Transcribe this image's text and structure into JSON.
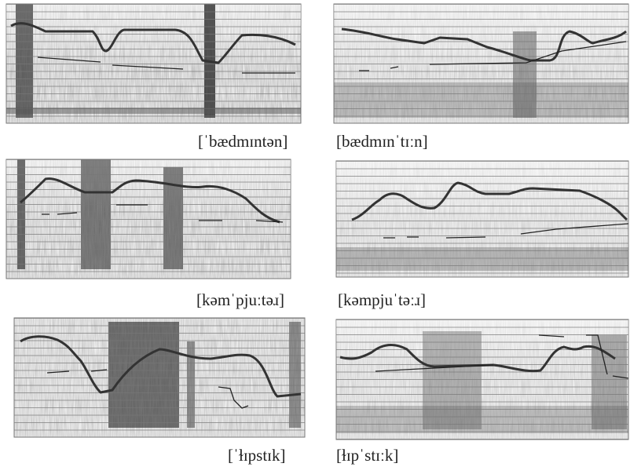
{
  "figure": {
    "panels": [
      {
        "caption": "[ˈbædmɪntən]"
      },
      {
        "caption": "[bædmɪnˈtɪːn]"
      },
      {
        "caption": "[kəmˈpjuːtəɹ]"
      },
      {
        "caption": "[kəmpjuˈtəːɹ]"
      },
      {
        "caption": "[ˈɫɪpstɪk]"
      },
      {
        "caption": "[ɫɪpˈstɪːk]"
      }
    ]
  }
}
